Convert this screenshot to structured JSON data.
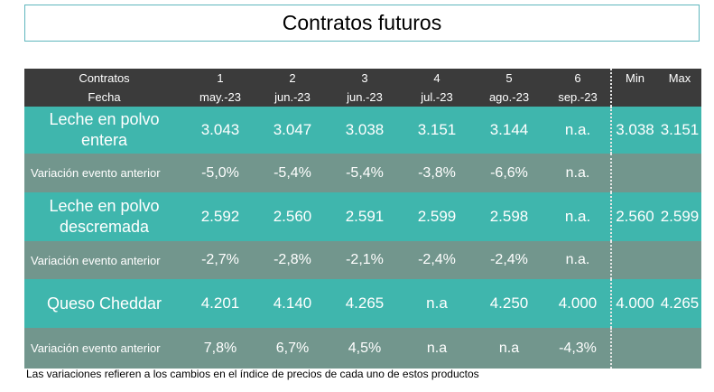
{
  "title": "Contratos futuros",
  "header": {
    "row1_label": "Contratos",
    "row2_label": "Fecha",
    "columns": [
      {
        "num": "1",
        "date": "may.-23"
      },
      {
        "num": "2",
        "date": "jun.-23"
      },
      {
        "num": "3",
        "date": "jun.-23"
      },
      {
        "num": "4",
        "date": "jul.-23"
      },
      {
        "num": "5",
        "date": "ago.-23"
      },
      {
        "num": "6",
        "date": "sep.-23"
      }
    ],
    "min": "Min",
    "max": "Max"
  },
  "rows": [
    {
      "label_line1": "Leche en polvo",
      "label_line2": "entera",
      "values": [
        "3.043",
        "3.047",
        "3.038",
        "3.151",
        "3.144",
        "n.a."
      ],
      "min": "3.038",
      "max": "3.151"
    },
    {
      "label": "Variación evento anterior",
      "values": [
        "-5,0%",
        "-5,4%",
        "-5,4%",
        "-3,8%",
        "-6,6%",
        "n.a."
      ],
      "min": "",
      "max": ""
    },
    {
      "label_line1": "Leche en polvo",
      "label_line2": "descremada",
      "values": [
        "2.592",
        "2.560",
        "2.591",
        "2.599",
        "2.598",
        "n.a."
      ],
      "min": "2.560",
      "max": "2.599"
    },
    {
      "label": "Variación evento anterior",
      "values": [
        "-2,7%",
        "-2,8%",
        "-2,1%",
        "-2,4%",
        "-2,4%",
        "n.a."
      ],
      "min": "",
      "max": ""
    },
    {
      "label_line1": "Queso Cheddar",
      "label_line2": "",
      "values": [
        "4.201",
        "4.140",
        "4.265",
        "n.a",
        "4.250",
        "4.000"
      ],
      "min": "4.000",
      "max": "4.265"
    },
    {
      "label": "Variación evento anterior",
      "values": [
        "7,8%",
        "6,7%",
        "4,5%",
        "n.a",
        "n.a",
        "-4,3%"
      ],
      "min": "",
      "max": ""
    }
  ],
  "footnote": "Las variaciones refieren a los cambios en el índice de precios de cada uno de estos productos",
  "colors": {
    "header_bg": "#3b3b3b",
    "main_row_bg": "#3fb6ad",
    "variation_row_bg": "#72968d",
    "title_border": "#5fb6bd"
  }
}
